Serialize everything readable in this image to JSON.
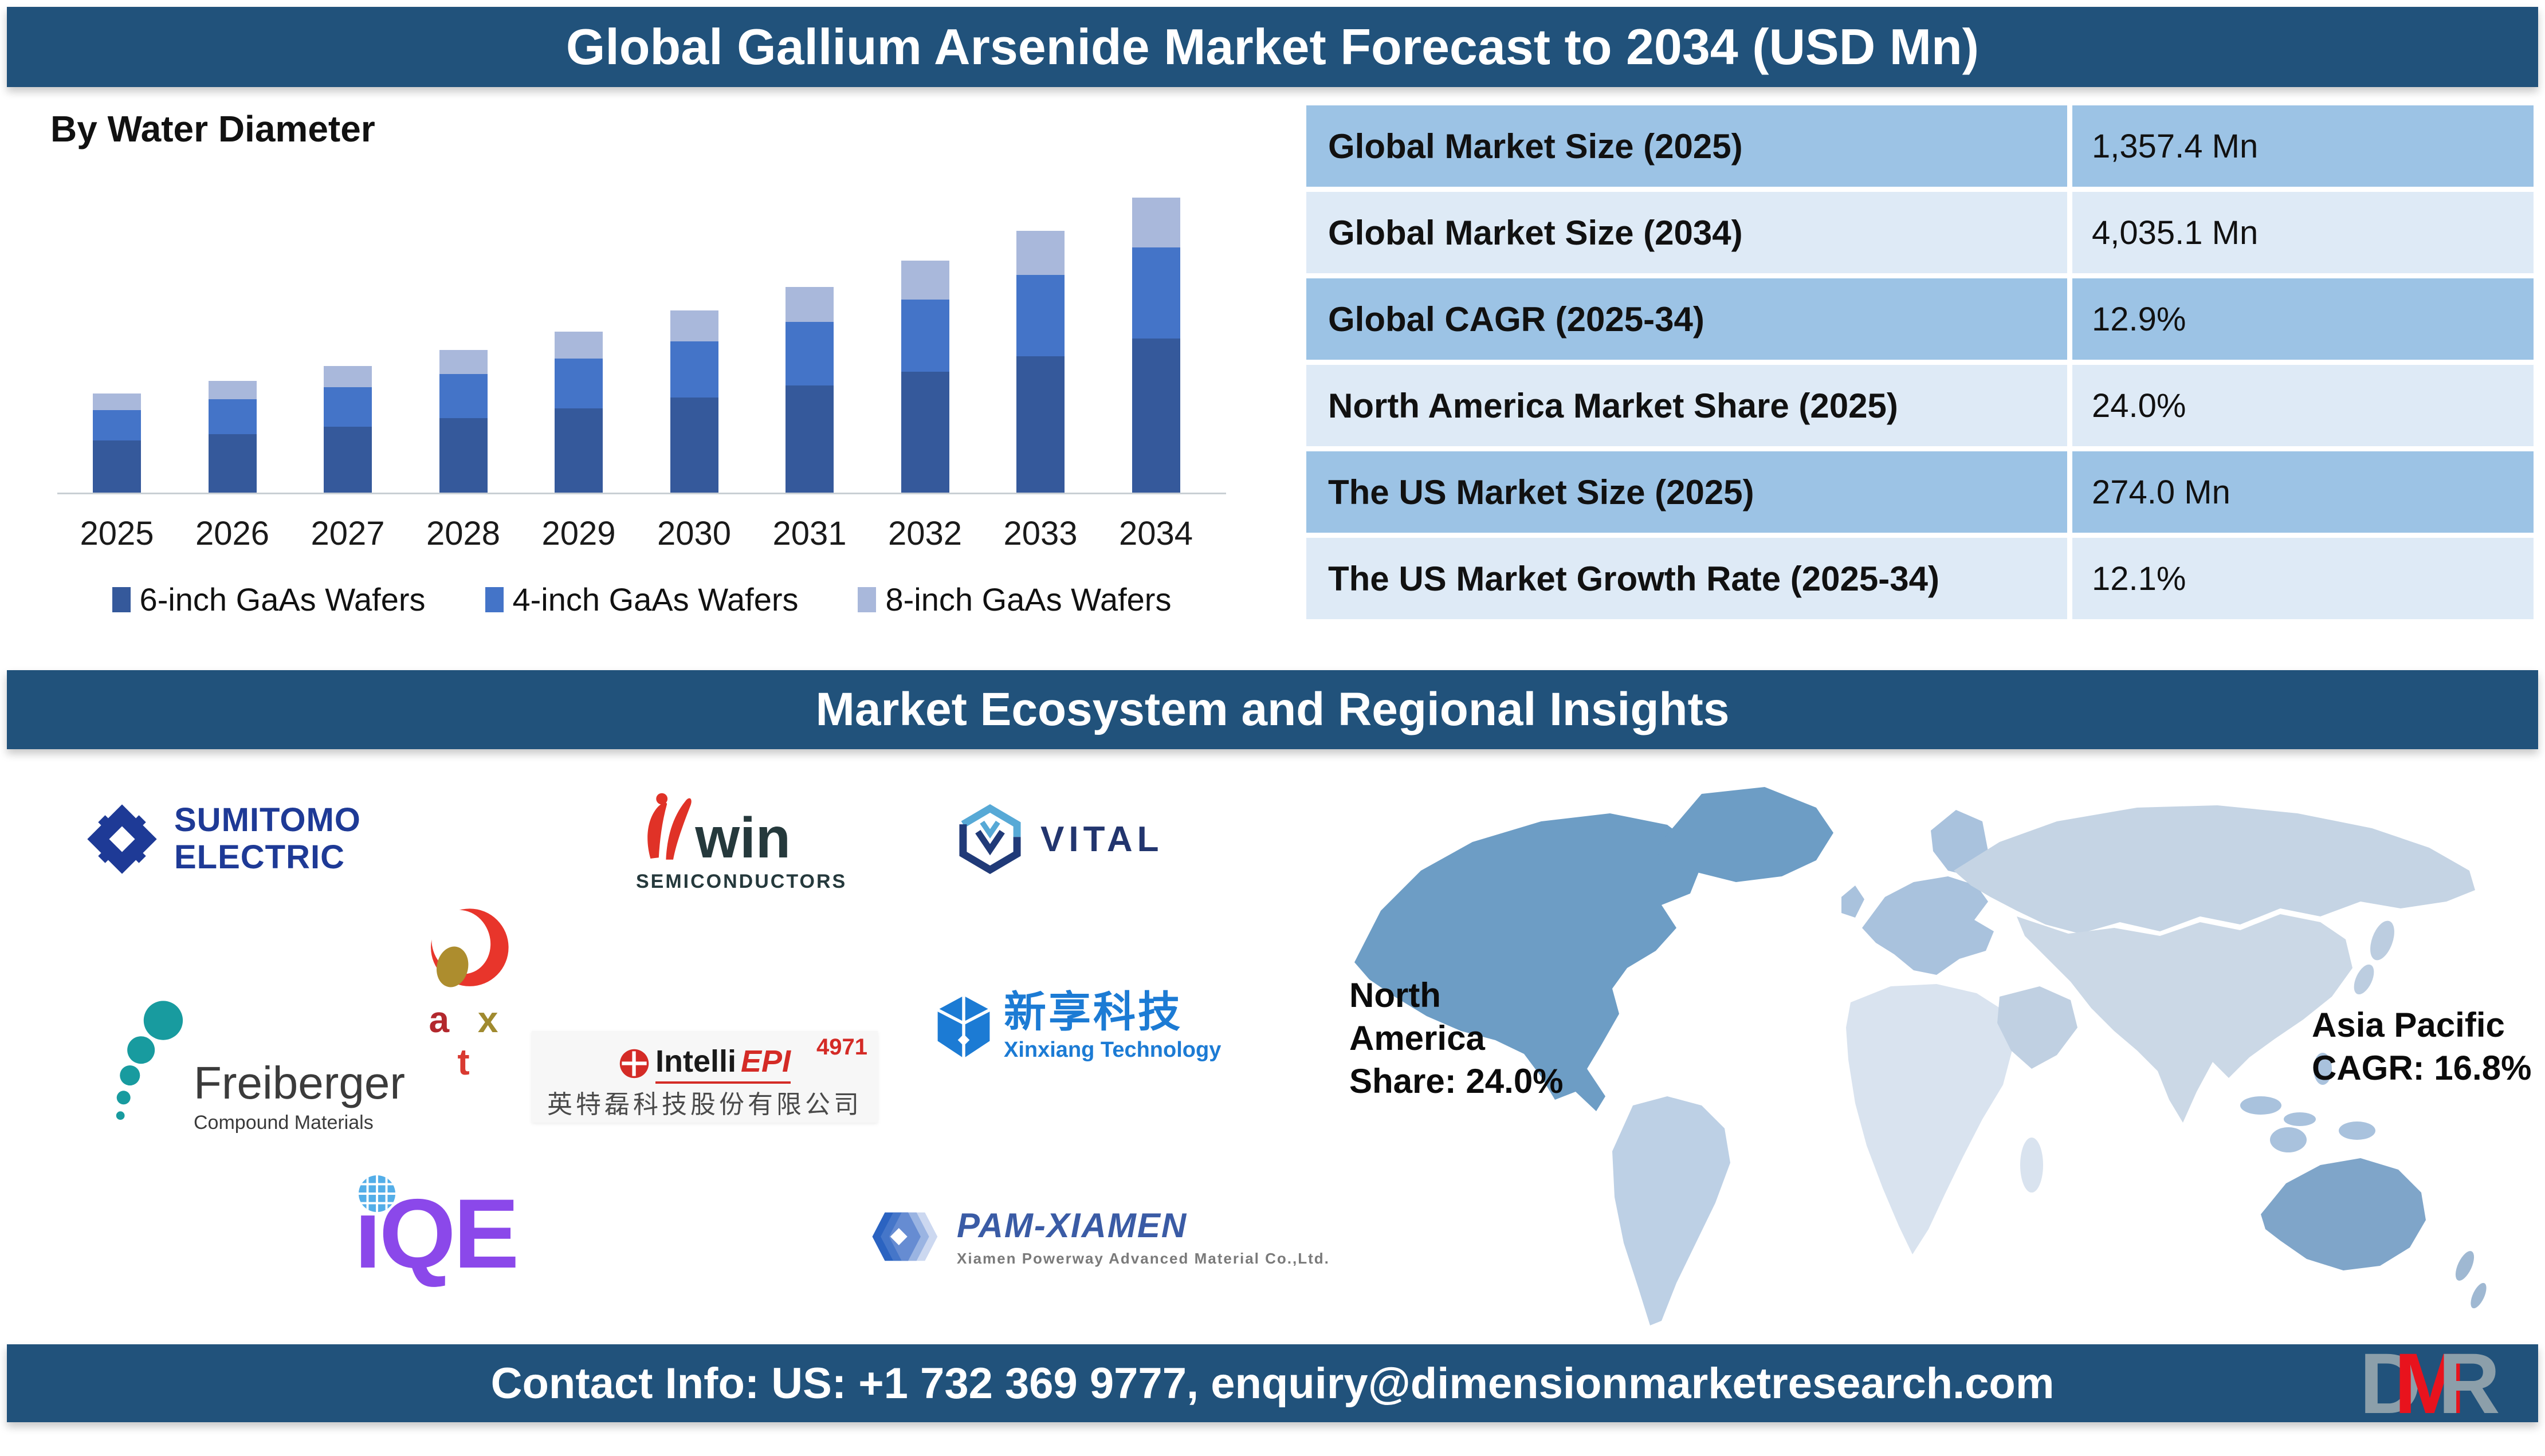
{
  "header": {
    "title": "Global Gallium Arsenide Market Forecast to 2034 (USD Mn)"
  },
  "chart_section": {
    "label": "By Water Diameter"
  },
  "chart_data": {
    "type": "bar",
    "stacked": true,
    "title": "By Water Diameter",
    "units": "USD Mn",
    "categories": [
      "2025",
      "2026",
      "2027",
      "2028",
      "2029",
      "2030",
      "2031",
      "2032",
      "2033",
      "2034"
    ],
    "series": [
      {
        "name": "6-inch GaAs Wafers",
        "color": "#35599B",
        "values": [
          710,
          800,
          903,
          1019,
          1150,
          1299,
          1466,
          1655,
          1869,
          2105
        ]
      },
      {
        "name": "4-inch GaAs Wafers",
        "color": "#4474C8",
        "values": [
          422,
          475,
          536,
          605,
          683,
          771,
          871,
          983,
          1110,
          1250
        ]
      },
      {
        "name": "8-inch GaAs Wafers",
        "color": "#A9B8DB",
        "values": [
          225,
          257,
          291,
          329,
          372,
          420,
          474,
          535,
          604,
          680
        ]
      }
    ],
    "totals": [
      1357.4,
      1532.5,
      1730.2,
      1953.4,
      2205.4,
      2489.9,
      2811.1,
      3173.7,
      3583.1,
      4035.1
    ],
    "ylim": [
      0,
      4200
    ],
    "gridlines": false,
    "legend_position": "bottom"
  },
  "stats_table": {
    "rows": [
      {
        "label": "Global Market Size (2025)",
        "value": "1,357.4 Mn"
      },
      {
        "label": "Global Market Size (2034)",
        "value": "4,035.1 Mn"
      },
      {
        "label": "Global CAGR (2025-34)",
        "value": "12.9%"
      },
      {
        "label": "North America Market Share (2025)",
        "value": "24.0%"
      },
      {
        "label": "The US Market Size (2025)",
        "value": "274.0 Mn"
      },
      {
        "label": "The US Market Growth Rate (2025-34)",
        "value": "12.1%"
      }
    ]
  },
  "ecosystem": {
    "title": "Market Ecosystem and Regional Insights"
  },
  "logos": {
    "sumitomo": {
      "line1": "SUMITOMO",
      "line2": "ELECTRIC"
    },
    "win": {
      "name": "win",
      "sub": "SEMICONDUCTORS"
    },
    "vital": {
      "name": "VITAL"
    },
    "axt": {
      "a": "a",
      "x": "x",
      "t": "t"
    },
    "intelliepi": {
      "intelli": "Intelli",
      "epi": "EPI",
      "code": "4971",
      "chinese": "英特磊科技股份有限公司"
    },
    "xinxiang": {
      "chinese": "新享科技",
      "english": "Xinxiang Technology"
    },
    "freiberger": {
      "name": "Freiberger",
      "sub": "Compound Materials"
    },
    "iqe": {
      "name": "ıQE"
    },
    "pamxiamen": {
      "name": "PAM-XIAMEN",
      "sub": "Xiamen Powerway Advanced Material Co.,Ltd."
    }
  },
  "map": {
    "north_america": {
      "line1": "North",
      "line2": "America",
      "line3": "Share: 24.0%"
    },
    "asia_pacific": {
      "line1": "Asia Pacific",
      "line2": "CAGR: 16.8%"
    },
    "colors": {
      "north_america": "#6D9DC5",
      "greenland": "#6D9DC5",
      "south_america": "#BDD0E5",
      "europe": "#A9C2DD",
      "africa": "#D9E3EF",
      "russia_north_asia": "#C5D4E4",
      "south_asia": "#CBD8E6",
      "middle_east": "#C0D0E2",
      "islands": "#A9C2DD",
      "australia": "#7FA5C9",
      "new_zealand": "#9FB8D2"
    }
  },
  "footer": {
    "contact": "Contact Info: US: +1 732 369 9777, enquiry@dimensionmarketresearch.com",
    "logo": {
      "d": "D",
      "m": "M",
      "r": "R"
    }
  }
}
